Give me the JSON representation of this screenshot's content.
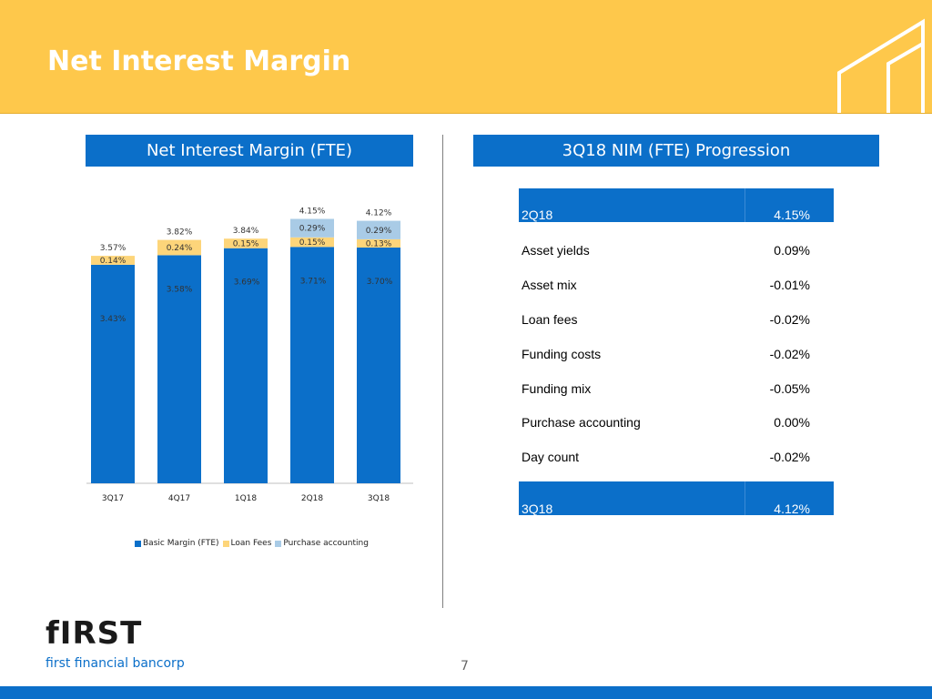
{
  "header": {
    "title": "Net Interest Margin"
  },
  "colors": {
    "accent_yellow": "#fec84b",
    "brand_blue": "#0b6fc9",
    "basic": "#0b6fc9",
    "loan": "#fdd57a",
    "purchase": "#a9cbe6"
  },
  "left_panel": {
    "title": "Net Interest Margin (FTE)"
  },
  "right_panel": {
    "title": "3Q18 NIM (FTE) Progression"
  },
  "chart_data": {
    "type": "bar",
    "stacked": true,
    "title": "Net Interest Margin (FTE)",
    "categories": [
      "3Q17",
      "4Q17",
      "1Q18",
      "2Q18",
      "3Q18"
    ],
    "series": [
      {
        "name": "Basic Margin (FTE)",
        "values": [
          3.43,
          3.58,
          3.69,
          3.71,
          3.7
        ],
        "labels": [
          "3.43%",
          "3.58%",
          "3.69%",
          "3.71%",
          "3.70%"
        ]
      },
      {
        "name": "Loan Fees",
        "values": [
          0.14,
          0.24,
          0.15,
          0.15,
          0.13
        ],
        "labels": [
          "0.14%",
          "0.24%",
          "0.15%",
          "0.15%",
          "0.13%"
        ]
      },
      {
        "name": "Purchase accounting",
        "values": [
          0,
          0,
          0,
          0.29,
          0.29
        ],
        "labels": [
          "",
          "",
          "",
          "0.29%",
          "0.29%"
        ]
      }
    ],
    "totals": [
      "3.57%",
      "3.82%",
      "3.84%",
      "4.15%",
      "4.12%"
    ],
    "legend": [
      "Basic Margin (FTE)",
      "Loan Fees",
      "Purchase accounting"
    ],
    "legend_position": "bottom",
    "ylim": [
      0,
      4.3
    ]
  },
  "progression": {
    "start": {
      "label": "2Q18",
      "value": "4.15%"
    },
    "rows": [
      {
        "label": "Asset yields",
        "value": "0.09%"
      },
      {
        "label": "Asset mix",
        "value": "-0.01%"
      },
      {
        "label": "Loan fees",
        "value": "-0.02%"
      },
      {
        "label": "Funding costs",
        "value": "-0.02%"
      },
      {
        "label": "Funding mix",
        "value": "-0.05%"
      },
      {
        "label": "Purchase accounting",
        "value": "0.00%"
      },
      {
        "label": "Day count",
        "value": "-0.02%"
      }
    ],
    "end": {
      "label": "3Q18",
      "value": "4.12%"
    }
  },
  "footer": {
    "logo": "fIRST",
    "company": "first financial bancorp",
    "page_number": "7"
  }
}
